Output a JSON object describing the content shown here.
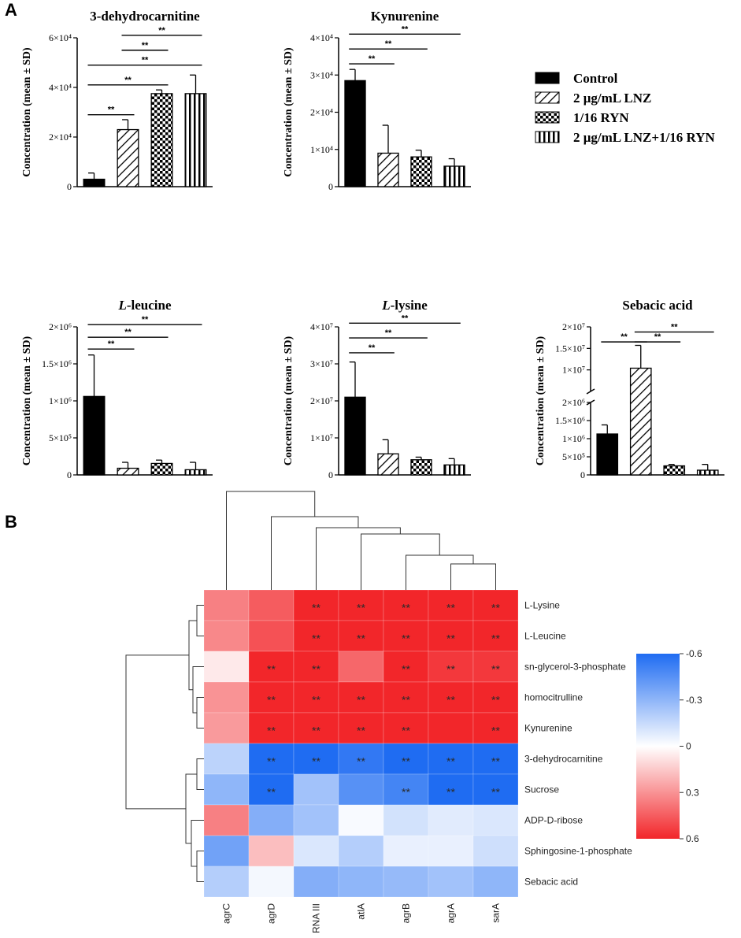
{
  "panel_labels": {
    "a": "A",
    "b": "B"
  },
  "legend": {
    "items": [
      {
        "label": "Control",
        "pattern": "solid"
      },
      {
        "label": "2 μg/mL LNZ",
        "pattern": "hatch"
      },
      {
        "label": "1/16 RYN",
        "pattern": "checker"
      },
      {
        "label": "2 μg/mL LNZ+1/16 RYN",
        "pattern": "vertical"
      }
    ]
  },
  "colors": {
    "bar_fill": "#000000",
    "heat_pos": "#f2262a",
    "heat_neg": "#1f6cf2",
    "heat_mid": "#ffffff"
  },
  "chart_data": [
    {
      "type": "bar",
      "title": "3-dehydrocarnitine",
      "ylabel": "Concentration (mean ± SD)",
      "categories": [
        "Control",
        "2 μg/mL LNZ",
        "1/16 RYN",
        "2 μg/mL LNZ+1/16 RYN"
      ],
      "values": [
        3000,
        23000,
        37500,
        37500
      ],
      "errors": [
        2500,
        4000,
        1500,
        7500
      ],
      "ylim": [
        0,
        60000
      ],
      "ticks": [
        {
          "v": 0,
          "label": "0"
        },
        {
          "v": 20000,
          "label": "2×10⁴"
        },
        {
          "v": 40000,
          "label": "4×10⁴"
        },
        {
          "v": 60000,
          "label": "6×10⁴"
        }
      ],
      "significance": [
        {
          "from": 0,
          "to": 1,
          "y": 29000,
          "label": "**"
        },
        {
          "from": 0,
          "to": 2,
          "y": 41000,
          "label": "**"
        },
        {
          "from": 0,
          "to": 3,
          "y": 49000,
          "label": "**"
        },
        {
          "from": 1,
          "to": 2,
          "y": 55000,
          "label": "**"
        },
        {
          "from": 1,
          "to": 3,
          "y": 61000,
          "label": "**"
        }
      ]
    },
    {
      "type": "bar",
      "title": "Kynurenine",
      "ylabel": "Concentration (mean ± SD)",
      "categories": [
        "Control",
        "2 μg/mL LNZ",
        "1/16 RYN",
        "2 μg/mL LNZ+1/16 RYN"
      ],
      "values": [
        28500,
        9000,
        8000,
        5500
      ],
      "errors": [
        3000,
        7500,
        1800,
        2000
      ],
      "ylim": [
        0,
        40000
      ],
      "ticks": [
        {
          "v": 0,
          "label": "0"
        },
        {
          "v": 10000,
          "label": "1×10⁴"
        },
        {
          "v": 20000,
          "label": "2×10⁴"
        },
        {
          "v": 30000,
          "label": "3×10⁴"
        },
        {
          "v": 40000,
          "label": "4×10⁴"
        }
      ],
      "significance": [
        {
          "from": 0,
          "to": 1,
          "y": 33000,
          "label": "**"
        },
        {
          "from": 0,
          "to": 2,
          "y": 37000,
          "label": "**"
        },
        {
          "from": 0,
          "to": 3,
          "y": 41000,
          "label": "**"
        }
      ]
    },
    {
      "type": "bar",
      "title": "L-leucine",
      "title_italic_prefix": "L",
      "title_rest": "-leucine",
      "ylabel": "Concentration (mean ± SD)",
      "categories": [
        "Control",
        "2 μg/mL LNZ",
        "1/16 RYN",
        "2 μg/mL LNZ+1/16 RYN"
      ],
      "values": [
        1060000,
        90000,
        155000,
        70000
      ],
      "errors": [
        560000,
        80000,
        45000,
        100000
      ],
      "ylim": [
        0,
        2000000
      ],
      "ticks": [
        {
          "v": 0,
          "label": "0"
        },
        {
          "v": 500000,
          "label": "5×10⁵"
        },
        {
          "v": 1000000,
          "label": "1×10⁶"
        },
        {
          "v": 1500000,
          "label": "1.5×10⁶"
        },
        {
          "v": 2000000,
          "label": "2×10⁶"
        }
      ],
      "significance": [
        {
          "from": 0,
          "to": 1,
          "y": 1700000,
          "label": "**"
        },
        {
          "from": 0,
          "to": 2,
          "y": 1860000,
          "label": "**"
        },
        {
          "from": 0,
          "to": 3,
          "y": 2030000,
          "label": "**"
        }
      ]
    },
    {
      "type": "bar",
      "title": "L-lysine",
      "title_italic_prefix": "L",
      "title_rest": "-lysine",
      "ylabel": "Concentration (mean ± SD)",
      "categories": [
        "Control",
        "2 μg/mL LNZ",
        "1/16 RYN",
        "2 μg/mL LNZ+1/16 RYN"
      ],
      "values": [
        21000000,
        5700000,
        4100000,
        2700000
      ],
      "errors": [
        9500000,
        3800000,
        700000,
        1700000
      ],
      "ylim": [
        0,
        40000000
      ],
      "ticks": [
        {
          "v": 0,
          "label": "0"
        },
        {
          "v": 10000000,
          "label": "1×10⁷"
        },
        {
          "v": 20000000,
          "label": "2×10⁷"
        },
        {
          "v": 30000000,
          "label": "3×10⁷"
        },
        {
          "v": 40000000,
          "label": "4×10⁷"
        }
      ],
      "significance": [
        {
          "from": 0,
          "to": 1,
          "y": 33000000,
          "label": "**"
        },
        {
          "from": 0,
          "to": 2,
          "y": 37000000,
          "label": "**"
        },
        {
          "from": 0,
          "to": 3,
          "y": 41000000,
          "label": "**"
        }
      ]
    },
    {
      "type": "bar",
      "title": "Sebacic acid",
      "ylabel": "Concentration (mean ± SD)",
      "broken_axis": true,
      "categories": [
        "Control",
        "2 μg/mL LNZ",
        "1/16 RYN",
        "2 μg/mL LNZ+1/16 RYN"
      ],
      "values": [
        1130000,
        10400000,
        250000,
        130000
      ],
      "errors": [
        250000,
        5300000,
        40000,
        160000
      ],
      "lower_ylim": [
        0,
        2000000
      ],
      "upper_ylim": [
        5000000,
        20000000
      ],
      "lower_ticks": [
        {
          "v": 0,
          "label": "0"
        },
        {
          "v": 500000,
          "label": "5×10⁵"
        },
        {
          "v": 1000000,
          "label": "1×10⁶"
        },
        {
          "v": 1500000,
          "label": "1.5×10⁶"
        },
        {
          "v": 2000000,
          "label": "2×10⁶"
        }
      ],
      "upper_ticks": [
        {
          "v": 10000000,
          "label": "1×10⁷"
        },
        {
          "v": 15000000,
          "label": "1.5×10⁷"
        },
        {
          "v": 20000000,
          "label": "2×10⁷"
        }
      ],
      "significance": [
        {
          "from": 0,
          "to": 1,
          "y": 16500000,
          "label": "**"
        },
        {
          "from": 1,
          "to": 2,
          "y": 16500000,
          "label": "**"
        },
        {
          "from": 1,
          "to": 3,
          "y": 18800000,
          "label": "**"
        }
      ]
    },
    {
      "type": "heatmap",
      "columns": [
        "agrC",
        "agrD",
        "RNA III",
        "atlA",
        "agrB",
        "agrA",
        "sarA"
      ],
      "rows": [
        "L-Lysine",
        "L-Leucine",
        "sn-glycerol-3-phosphate",
        "homocitrulline",
        "Kynurenine",
        "3-dehydrocarnitine",
        "Sucrose",
        "ADP-D-ribose",
        "Sphingosine-1-phosphate",
        "Sebacic acid"
      ],
      "values": [
        [
          0.35,
          0.45,
          0.6,
          0.6,
          0.6,
          0.6,
          0.6
        ],
        [
          0.33,
          0.48,
          0.6,
          0.6,
          0.6,
          0.6,
          0.6
        ],
        [
          0.06,
          0.6,
          0.6,
          0.42,
          0.6,
          0.55,
          0.55
        ],
        [
          0.3,
          0.6,
          0.6,
          0.6,
          0.6,
          0.6,
          0.6
        ],
        [
          0.28,
          0.6,
          0.6,
          0.6,
          0.6,
          0.6,
          0.6
        ],
        [
          -0.18,
          -0.6,
          -0.6,
          -0.55,
          -0.6,
          -0.6,
          -0.6
        ],
        [
          -0.3,
          -0.6,
          -0.25,
          -0.45,
          -0.5,
          -0.6,
          -0.6
        ],
        [
          0.35,
          -0.33,
          -0.25,
          -0.02,
          -0.12,
          -0.08,
          -0.1
        ],
        [
          -0.38,
          0.18,
          -0.1,
          -0.2,
          -0.06,
          -0.06,
          -0.13
        ],
        [
          -0.2,
          -0.03,
          -0.33,
          -0.3,
          -0.28,
          -0.25,
          -0.3
        ]
      ],
      "significance": [
        [
          "",
          "",
          "**",
          "**",
          "**",
          "**",
          "**"
        ],
        [
          "",
          "",
          "**",
          "**",
          "**",
          "**",
          "**"
        ],
        [
          "",
          "**",
          "**",
          "",
          "**",
          "**",
          "**"
        ],
        [
          "",
          "**",
          "**",
          "**",
          "**",
          "**",
          "**"
        ],
        [
          "",
          "**",
          "**",
          "**",
          "**",
          "",
          "**"
        ],
        [
          "",
          "**",
          "**",
          "**",
          "**",
          "**",
          "**"
        ],
        [
          "",
          "**",
          "",
          "",
          "**",
          "**",
          "**"
        ],
        [
          "",
          "",
          "",
          "",
          "",
          "",
          ""
        ],
        [
          "",
          "",
          "",
          "",
          "",
          "",
          ""
        ],
        [
          "",
          "",
          "",
          "",
          "",
          "",
          ""
        ]
      ],
      "colorbar": {
        "range": [
          -0.6,
          0.6
        ],
        "ticks": [
          {
            "v": -0.6,
            "label": "-0.6"
          },
          {
            "v": -0.3,
            "label": "-0.3"
          },
          {
            "v": 0,
            "label": "0"
          },
          {
            "v": 0.3,
            "label": "0.3"
          },
          {
            "v": 0.6,
            "label": "0.6"
          }
        ]
      }
    }
  ]
}
